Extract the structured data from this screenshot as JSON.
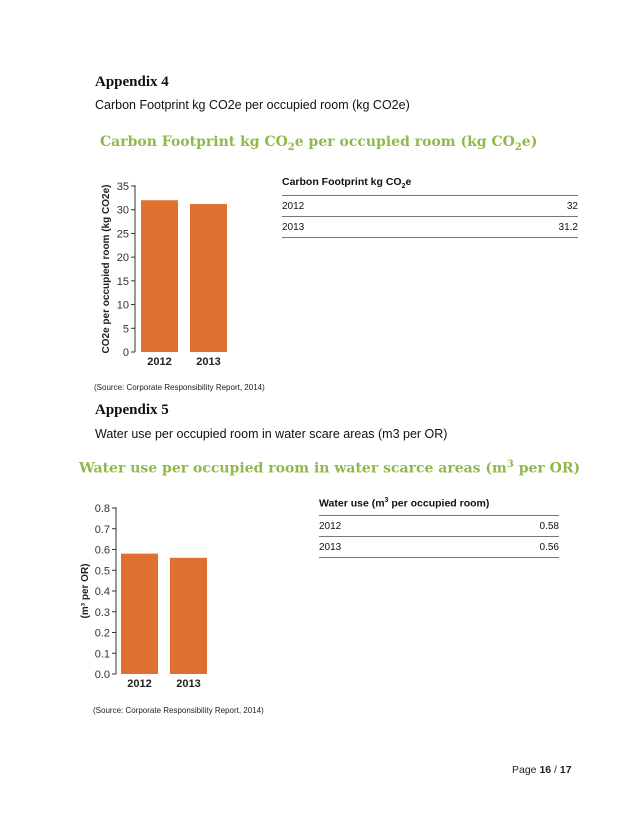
{
  "appendix4": {
    "heading": "Appendix 4",
    "subtitle": "Carbon Footprint kg CO2e per occupied room (kg CO2e)",
    "figure_title": {
      "part1": "Carbon Footprint kg CO",
      "sub1": "2",
      "part2": "e per occupied room (kg CO",
      "sub2": "2",
      "part3": "e)"
    },
    "table": {
      "header": {
        "part1": "Carbon Footprint kg CO",
        "sub": "2",
        "part2": "e"
      },
      "rows": [
        {
          "year": "2012",
          "value": "32"
        },
        {
          "year": "2013",
          "value": "31.2"
        }
      ]
    },
    "source": "(Source: Corporate Responsibility Report, 2014)"
  },
  "appendix5": {
    "heading": "Appendix 5",
    "subtitle": "Water use per occupied room in water scare areas (m3 per OR)",
    "figure_title": {
      "part1": "Water use per occupied room in water scarce areas (m",
      "sup": "3",
      "part2": " per OR)"
    },
    "table": {
      "header": {
        "part1": "Water use (m",
        "sup": "3",
        "part2": " per occupied room)"
      },
      "rows": [
        {
          "year": "2012",
          "value": "0.58"
        },
        {
          "year": "2013",
          "value": "0.56"
        }
      ]
    },
    "source": "(Source: Corporate Responsibility Report, 2014)"
  },
  "page": {
    "label": "Page ",
    "current": "16",
    "separator": " / ",
    "total": "17"
  },
  "chart_data": [
    {
      "type": "bar",
      "categories": [
        "2012",
        "2013"
      ],
      "values": [
        32,
        31.2
      ],
      "ylabel": "CO2e per occupied room (kg CO2e)",
      "ylim": [
        0,
        35
      ],
      "yticks": [
        0,
        5,
        10,
        15,
        20,
        25,
        30,
        35
      ],
      "ytick_labels": [
        "0",
        "5",
        "10",
        "15",
        "20",
        "25",
        "30",
        "35"
      ],
      "color": "#e07030",
      "grid": false
    },
    {
      "type": "bar",
      "categories": [
        "2012",
        "2013"
      ],
      "values": [
        0.58,
        0.56
      ],
      "ylabel": "(m³ per OR)",
      "ylim": [
        0,
        0.8
      ],
      "yticks": [
        0,
        0.1,
        0.2,
        0.3,
        0.4,
        0.5,
        0.6,
        0.7,
        0.8
      ],
      "ytick_labels": [
        "0.0",
        "0.1",
        "0.2",
        "0.3",
        "0.4",
        "0.5",
        "0.6",
        "0.7",
        "0.8"
      ],
      "color": "#e07030",
      "grid": false
    }
  ]
}
